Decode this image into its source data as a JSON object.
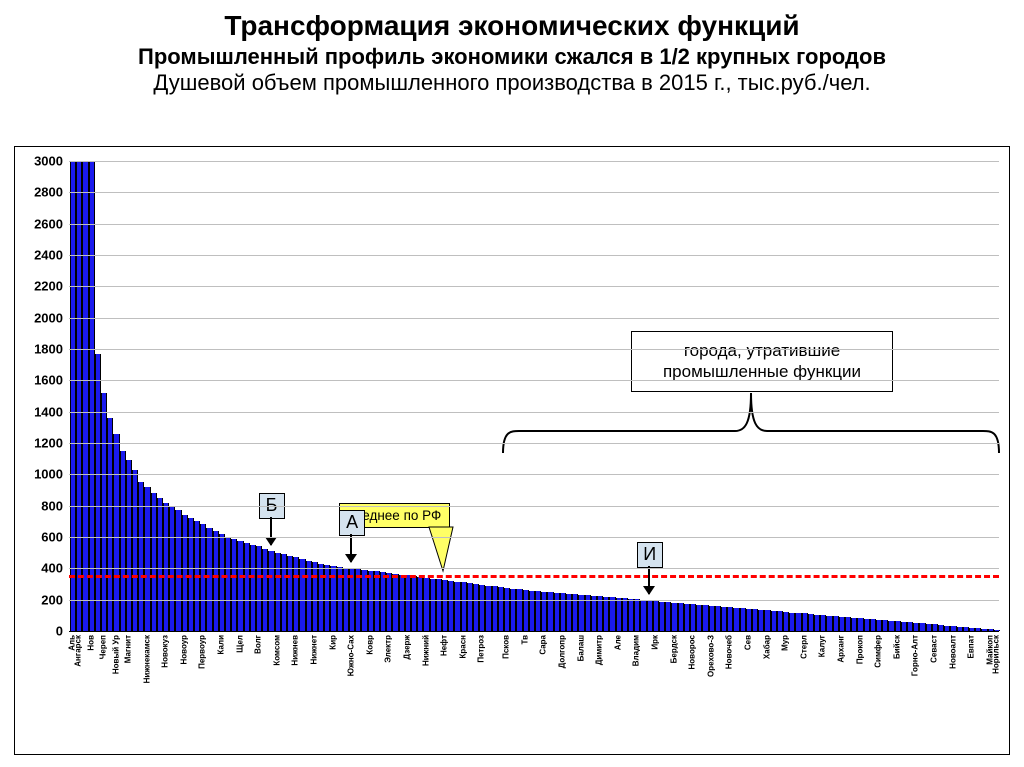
{
  "titles": {
    "line1": "Трансформация экономических функций",
    "line2": "Промышленный профиль экономики сжался в 1/2 крупных городов",
    "line3": "Душевой объем промышленного производства в 2015 г., тыс.руб./чел."
  },
  "chart": {
    "type": "bar",
    "ylim": [
      0,
      3000
    ],
    "ytick_step": 200,
    "yticks": [
      0,
      200,
      400,
      600,
      800,
      1000,
      1200,
      1400,
      1600,
      1800,
      2000,
      2200,
      2400,
      2600,
      2800,
      3000
    ],
    "grid_color": "#bfbfbf",
    "axis_color": "#000000",
    "plot_bg": "#ffffff",
    "bar_color": "#1a1aee",
    "bar_border": "#000000",
    "avg_line": {
      "value": 355,
      "color": "#ff0000",
      "label": "среднее по РФ",
      "label_bg": "#ffff66"
    },
    "values": [
      3000,
      3000,
      3000,
      3000,
      1770,
      1520,
      1360,
      1260,
      1150,
      1090,
      1030,
      950,
      920,
      880,
      850,
      820,
      790,
      770,
      740,
      720,
      700,
      680,
      660,
      640,
      620,
      600,
      590,
      575,
      560,
      550,
      540,
      525,
      510,
      500,
      490,
      480,
      470,
      460,
      450,
      440,
      430,
      420,
      415,
      410,
      405,
      400,
      395,
      390,
      385,
      380,
      375,
      370,
      365,
      360,
      355,
      350,
      345,
      340,
      335,
      330,
      325,
      320,
      315,
      310,
      305,
      300,
      295,
      290,
      285,
      280,
      275,
      270,
      265,
      262,
      258,
      255,
      252,
      248,
      245,
      242,
      238,
      235,
      232,
      228,
      225,
      222,
      218,
      215,
      212,
      208,
      205,
      202,
      198,
      195,
      192,
      188,
      185,
      182,
      178,
      175,
      172,
      168,
      165,
      162,
      158,
      155,
      152,
      148,
      145,
      142,
      138,
      135,
      132,
      128,
      125,
      122,
      118,
      115,
      112,
      108,
      105,
      102,
      98,
      95,
      92,
      88,
      85,
      82,
      78,
      75,
      72,
      68,
      65,
      62,
      58,
      55,
      52,
      48,
      45,
      42,
      38,
      35,
      32,
      28,
      25,
      22,
      18,
      15,
      12,
      8
    ],
    "bar_gap_ratio": 0.35,
    "categories_shown": [
      {
        "i": 0,
        "label": "Аль"
      },
      {
        "i": 1,
        "label": "Ангарск"
      },
      {
        "i": 3,
        "label": "Нов"
      },
      {
        "i": 5,
        "label": "Череп"
      },
      {
        "i": 7,
        "label": "Новый Ур"
      },
      {
        "i": 9,
        "label": "Магнит"
      },
      {
        "i": 12,
        "label": "Нижнекамск"
      },
      {
        "i": 15,
        "label": "Новокуз"
      },
      {
        "i": 18,
        "label": "Новоур"
      },
      {
        "i": 21,
        "label": "Первоур"
      },
      {
        "i": 24,
        "label": "Кали"
      },
      {
        "i": 27,
        "label": "Щел"
      },
      {
        "i": 30,
        "label": "Волг"
      },
      {
        "i": 33,
        "label": "Комсом"
      },
      {
        "i": 36,
        "label": "Нижнев"
      },
      {
        "i": 39,
        "label": "Нижнет"
      },
      {
        "i": 42,
        "label": "Кир"
      },
      {
        "i": 45,
        "label": "Южно-Сах"
      },
      {
        "i": 48,
        "label": "Ковр"
      },
      {
        "i": 51,
        "label": "Электр"
      },
      {
        "i": 54,
        "label": "Дзерж"
      },
      {
        "i": 57,
        "label": "Нижний"
      },
      {
        "i": 60,
        "label": "Нефт"
      },
      {
        "i": 63,
        "label": "Красн"
      },
      {
        "i": 66,
        "label": "Петроз"
      },
      {
        "i": 70,
        "label": "Псков"
      },
      {
        "i": 73,
        "label": "Тв"
      },
      {
        "i": 76,
        "label": "Сара"
      },
      {
        "i": 79,
        "label": "Долгопр"
      },
      {
        "i": 82,
        "label": "Балаш"
      },
      {
        "i": 85,
        "label": "Димитр"
      },
      {
        "i": 88,
        "label": "Але"
      },
      {
        "i": 91,
        "label": "Владим"
      },
      {
        "i": 94,
        "label": "Ирк"
      },
      {
        "i": 97,
        "label": "Бердск"
      },
      {
        "i": 100,
        "label": "Новорос"
      },
      {
        "i": 103,
        "label": "Орехово-З"
      },
      {
        "i": 106,
        "label": "Новочеб"
      },
      {
        "i": 109,
        "label": "Сев"
      },
      {
        "i": 112,
        "label": "Хабар"
      },
      {
        "i": 115,
        "label": "Мур"
      },
      {
        "i": 118,
        "label": "Стерл"
      },
      {
        "i": 121,
        "label": "Калуг"
      },
      {
        "i": 124,
        "label": "Арханг"
      },
      {
        "i": 127,
        "label": "Прокоп"
      },
      {
        "i": 130,
        "label": "Симфер"
      },
      {
        "i": 133,
        "label": "Бийск"
      },
      {
        "i": 136,
        "label": "Горно-Алт"
      },
      {
        "i": 139,
        "label": "Севаст"
      },
      {
        "i": 142,
        "label": "Новоалт"
      },
      {
        "i": 145,
        "label": "Евпат"
      },
      {
        "i": 148,
        "label": "Майкоп"
      },
      {
        "i": 149,
        "label": "Норильск"
      }
    ],
    "markers": [
      {
        "label": "Б",
        "bar_index": 32,
        "box_bg": "#d5e3ef"
      },
      {
        "label": "А",
        "bar_index": 45,
        "box_bg": "#d5e3ef"
      },
      {
        "label": "И",
        "bar_index": 93,
        "box_bg": "#d5e3ef"
      }
    ],
    "annotation": {
      "text": "города, утратившие\nпромышленные функции",
      "brace_from_index": 70,
      "brace_to_index": 149
    }
  }
}
